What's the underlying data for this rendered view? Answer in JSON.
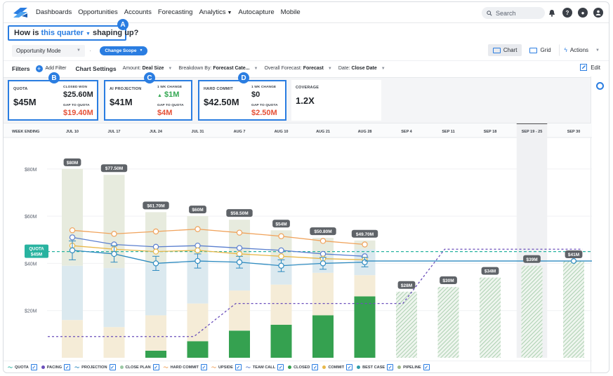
{
  "nav": {
    "items": [
      "Dashboards",
      "Opportunities",
      "Accounts",
      "Forecasting",
      "Analytics",
      "Autocapture",
      "Mobile"
    ],
    "search_placeholder": "Search"
  },
  "headline": {
    "prefix": "How is",
    "period": "this quarter",
    "suffix": "shaping up?",
    "badge": "A"
  },
  "mode": {
    "label": "Opportunity Mode",
    "scope": "Change Scope"
  },
  "view": {
    "chart": "Chart",
    "grid": "Grid",
    "actions": "Actions"
  },
  "filters": {
    "label": "Filters",
    "add": "Add Filter",
    "settings": "Chart Settings",
    "amount_key": "Amount:",
    "amount_val": "Deal Size",
    "breakdown_key": "Breakdown By:",
    "breakdown_val": "Forecast Cate...",
    "overall_key": "Overall Forecast:",
    "overall_val": "Forecast",
    "date_key": "Date:",
    "date_val": "Close Date",
    "edit": "Edit"
  },
  "kpis": {
    "quota": {
      "label": "QUOTA",
      "value": "$45M",
      "badge": "B",
      "closed_label": "CLOSED WON",
      "closed_value": "$25.60M",
      "gap_label": "GAP TO QUOTA",
      "gap_value": "$19.40M"
    },
    "ai": {
      "label": "AI PROJECTION",
      "value": "$41M",
      "badge": "C",
      "change_label": "1 WK CHANGE",
      "change_value": "$1M",
      "gap_label": "GAP TO QUOTA",
      "gap_value": "$4M"
    },
    "hard": {
      "label": "HARD COMMIT",
      "value": "$42.50M",
      "badge": "D",
      "change_label": "1 WK CHANGE",
      "change_value": "$0",
      "gap_label": "GAP TO QUOTA",
      "gap_value": "$2.50M"
    },
    "coverage": {
      "label": "COVERAGE",
      "value": "1.2X"
    }
  },
  "colors": {
    "accent": "#2a7de1",
    "closed": "#35a150",
    "quota": "#28b3a0",
    "pacing": "#6b4fbb",
    "projection": "#2e8bc0",
    "close_plan": "#9bc9a4",
    "hard_commit": "#f0a35c",
    "upside": "#f0a35c",
    "team_call": "#5a7fcf",
    "commit": "#e8b84a",
    "best_case": "#2c9aa8",
    "pipeline": "#9fb88a",
    "red": "#e55036"
  },
  "chart_data": {
    "type": "bar",
    "header_label": "WEEK ENDING",
    "categories": [
      "JUL 10",
      "JUL 17",
      "JUL 24",
      "JUL 31",
      "AUG 7",
      "AUG 10",
      "AUG 21",
      "AUG 28",
      "SEP 4",
      "SEP 11",
      "SEP 18",
      "SEP 19 - 25",
      "SEP 30"
    ],
    "highlight_category": "SEP 19 - 25",
    "y_ticks": [
      "$20M",
      "$40M",
      "$60M",
      "$80M"
    ],
    "ylim": [
      0,
      90
    ],
    "quota_label": [
      "QUOTA",
      "$45M"
    ],
    "quota_value": 45,
    "totals": [
      80,
      77.5,
      61.7,
      60,
      58.5,
      54,
      50.8,
      49.7,
      28,
      30,
      34,
      39,
      41
    ],
    "total_labels": [
      "$80M",
      "$77.50M",
      "$61.70M",
      "$60M",
      "$58.50M",
      "$54M",
      "$50.80M",
      "$49.70M",
      "$28M",
      "$30M",
      "$34M",
      "$39M",
      "$41M"
    ],
    "closed": [
      0,
      0,
      3,
      7,
      11.5,
      14,
      18,
      26,
      0,
      0,
      0,
      0,
      0
    ],
    "commit": [
      16,
      13,
      15,
      16,
      17,
      17,
      18,
      9,
      0,
      0,
      0,
      0,
      0
    ],
    "best_case": [
      23,
      25,
      22,
      21,
      14,
      12,
      7,
      11,
      0,
      0,
      0,
      0,
      0
    ],
    "projected_future": [
      0,
      0,
      0,
      0,
      0,
      0,
      0,
      0,
      28,
      30,
      34,
      39,
      41
    ],
    "upside_line": [
      54,
      52.5,
      53.5,
      54.5,
      53,
      51.5,
      49.5,
      48
    ],
    "team_call_line": [
      51,
      48,
      47,
      47.5,
      46.5,
      45.5,
      44,
      43
    ],
    "commit_line": [
      47.5,
      46,
      45,
      45.5,
      44,
      43,
      42,
      41.5
    ],
    "projection_line": [
      45.5,
      44,
      40,
      41,
      40.5,
      39,
      40,
      40.5
    ],
    "projection_err": [
      4,
      3.5,
      3,
      3,
      2.5,
      2.5,
      2.5,
      2
    ],
    "projection_flat": 41,
    "pacing_line": [
      [
        0,
        9
      ],
      [
        3.5,
        9
      ],
      [
        4.5,
        23
      ],
      [
        8.5,
        23
      ],
      [
        9.5,
        46
      ],
      [
        12.8,
        46
      ]
    ]
  },
  "legend": [
    {
      "name": "QUOTA",
      "kind": "line",
      "color": "#28b3a0"
    },
    {
      "name": "PACING",
      "kind": "dot",
      "color": "#6b4fbb"
    },
    {
      "name": "PROJECTION",
      "kind": "line",
      "color": "#2e8bc0"
    },
    {
      "name": "CLOSE PLAN",
      "kind": "dot",
      "color": "#9bc9a4"
    },
    {
      "name": "HARD COMMIT",
      "kind": "line",
      "color": "#f0a35c"
    },
    {
      "name": "UPSIDE",
      "kind": "line",
      "color": "#f0a35c"
    },
    {
      "name": "TEAM CALL",
      "kind": "line",
      "color": "#5a7fcf"
    },
    {
      "name": "CLOSED",
      "kind": "dot",
      "color": "#35a150"
    },
    {
      "name": "COMMIT",
      "kind": "dot",
      "color": "#e8b84a"
    },
    {
      "name": "BEST CASE",
      "kind": "dot",
      "color": "#2c9aa8"
    },
    {
      "name": "PIPELINE",
      "kind": "dot",
      "color": "#9fb88a"
    }
  ]
}
